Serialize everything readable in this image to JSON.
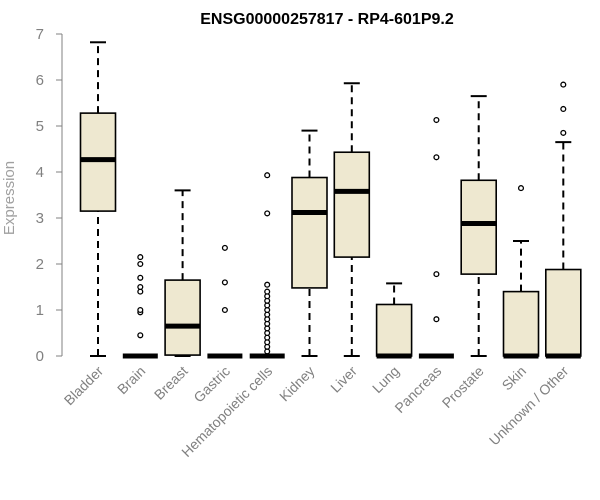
{
  "chart_data": {
    "type": "boxplot",
    "title": "ENSG00000257817 - RP4-601P9.2",
    "xlabel": "",
    "ylabel": "Expression",
    "ylim": [
      0,
      7
    ],
    "yticks": [
      0,
      1,
      2,
      3,
      4,
      5,
      6,
      7
    ],
    "grid": false,
    "colors": {
      "box_fill": "#eee8d0",
      "box_stroke": "#000000",
      "axis": "#808080"
    },
    "categories": [
      "Bladder",
      "Brain",
      "Breast",
      "Gastric",
      "Hematopoietic cells",
      "Kidney",
      "Liver",
      "Lung",
      "Pancreas",
      "Prostate",
      "Skin",
      "Unknown / Other"
    ],
    "boxes": [
      {
        "category": "Bladder",
        "min": 0,
        "q1": 3.15,
        "median": 4.27,
        "q3": 5.28,
        "max": 6.82,
        "outliers": []
      },
      {
        "category": "Brain",
        "min": 0,
        "q1": 0,
        "median": 0,
        "q3": 0,
        "max": 0,
        "outliers": [
          0.45,
          0.95,
          1.0,
          1.4,
          1.5,
          1.7,
          2.0,
          2.15
        ]
      },
      {
        "category": "Breast",
        "min": 0,
        "q1": 0.02,
        "median": 0.65,
        "q3": 1.65,
        "max": 3.6,
        "outliers": []
      },
      {
        "category": "Gastric",
        "min": 0,
        "q1": 0,
        "median": 0,
        "q3": 0,
        "max": 0,
        "outliers": [
          1.0,
          1.6,
          2.35
        ]
      },
      {
        "category": "Hematopoietic cells",
        "min": 0,
        "q1": 0,
        "median": 0,
        "q3": 0,
        "max": 0,
        "outliers": [
          0.1,
          0.2,
          0.3,
          0.4,
          0.5,
          0.6,
          0.7,
          0.8,
          0.9,
          1.0,
          1.1,
          1.2,
          1.3,
          1.4,
          1.55,
          3.1,
          3.93
        ]
      },
      {
        "category": "Kidney",
        "min": 0,
        "q1": 1.48,
        "median": 3.12,
        "q3": 3.88,
        "max": 4.9,
        "outliers": []
      },
      {
        "category": "Liver",
        "min": 0,
        "q1": 2.15,
        "median": 3.58,
        "q3": 4.43,
        "max": 5.93,
        "outliers": []
      },
      {
        "category": "Lung",
        "min": 0,
        "q1": 0,
        "median": 0,
        "q3": 1.12,
        "max": 1.58,
        "outliers": []
      },
      {
        "category": "Pancreas",
        "min": 0,
        "q1": 0,
        "median": 0,
        "q3": 0,
        "max": 0,
        "outliers": [
          0.8,
          1.78,
          4.32,
          5.13
        ]
      },
      {
        "category": "Prostate",
        "min": 0,
        "q1": 1.78,
        "median": 2.88,
        "q3": 3.82,
        "max": 5.65,
        "outliers": []
      },
      {
        "category": "Skin",
        "min": 0,
        "q1": 0,
        "median": 0,
        "q3": 1.4,
        "max": 2.5,
        "outliers": [
          3.65
        ]
      },
      {
        "category": "Unknown / Other",
        "min": 0,
        "q1": 0,
        "median": 0,
        "q3": 1.88,
        "max": 4.65,
        "outliers": [
          4.85,
          5.37,
          5.9
        ]
      }
    ]
  }
}
